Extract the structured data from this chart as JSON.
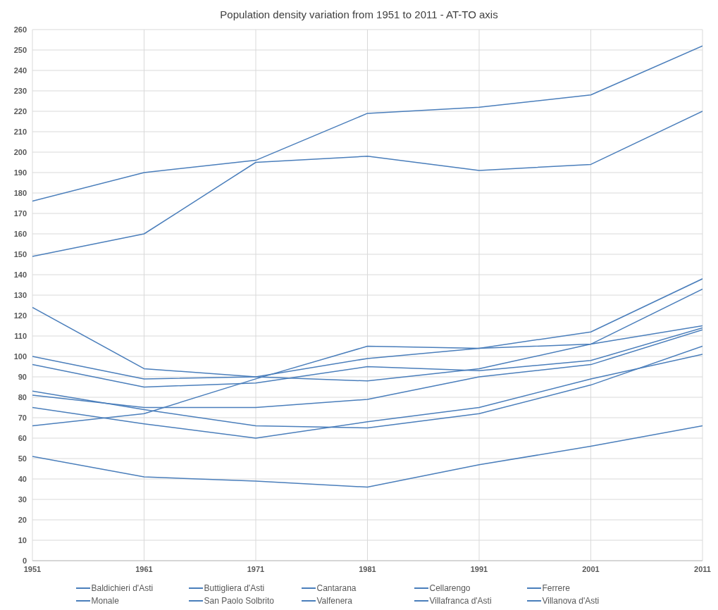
{
  "chart_data": {
    "type": "line",
    "title": "Population density variation from 1951 to 2011 - AT-TO axis",
    "x": [
      1951,
      1961,
      1971,
      1981,
      1991,
      2001,
      2011
    ],
    "xlim": [
      1951,
      2011
    ],
    "xticks": [
      1951,
      1961,
      1971,
      1981,
      1991,
      2001,
      2011
    ],
    "ylim": [
      0,
      260
    ],
    "yticks": [
      0,
      10,
      20,
      30,
      40,
      50,
      60,
      70,
      80,
      90,
      100,
      110,
      120,
      130,
      140,
      150,
      160,
      170,
      180,
      190,
      200,
      210,
      220,
      230,
      240,
      250,
      260
    ],
    "grid": true,
    "legend": "bottom",
    "marker": "none",
    "line_style": "solid",
    "series": [
      {
        "name": "Baldichieri d'Asti",
        "color": "#4a7ebb",
        "values": [
          176,
          190,
          196,
          219,
          222,
          228,
          252
        ]
      },
      {
        "name": "Buttigliera d'Asti",
        "color": "#4a7ebb",
        "values": [
          149,
          160,
          195,
          198,
          191,
          194,
          220
        ]
      },
      {
        "name": "Cantarana",
        "color": "#4a7ebb",
        "values": [
          124,
          94,
          90,
          88,
          94,
          106,
          133
        ]
      },
      {
        "name": "Cellarengo",
        "color": "#4a7ebb",
        "values": [
          100,
          89,
          90,
          99,
          104,
          106,
          115
        ]
      },
      {
        "name": "Ferrere",
        "color": "#4a7ebb",
        "values": [
          96,
          85,
          87,
          95,
          93,
          98,
          114
        ]
      },
      {
        "name": "Monale",
        "color": "#4a7ebb",
        "values": [
          66,
          72,
          89,
          105,
          104,
          112,
          138
        ]
      },
      {
        "name": "San Paolo Solbrito",
        "color": "#4a7ebb",
        "values": [
          81,
          75,
          75,
          79,
          90,
          96,
          113
        ]
      },
      {
        "name": "Valfenera",
        "color": "#4a7ebb",
        "values": [
          83,
          74,
          66,
          65,
          72,
          86,
          105
        ]
      },
      {
        "name": "Villafranca d'Asti",
        "color": "#4a7ebb",
        "values": [
          75,
          67,
          60,
          68,
          75,
          89,
          101
        ]
      },
      {
        "name": "Villanova d'Asti",
        "color": "#4a7ebb",
        "values": [
          51,
          41,
          39,
          36,
          47,
          56,
          66
        ]
      }
    ]
  }
}
